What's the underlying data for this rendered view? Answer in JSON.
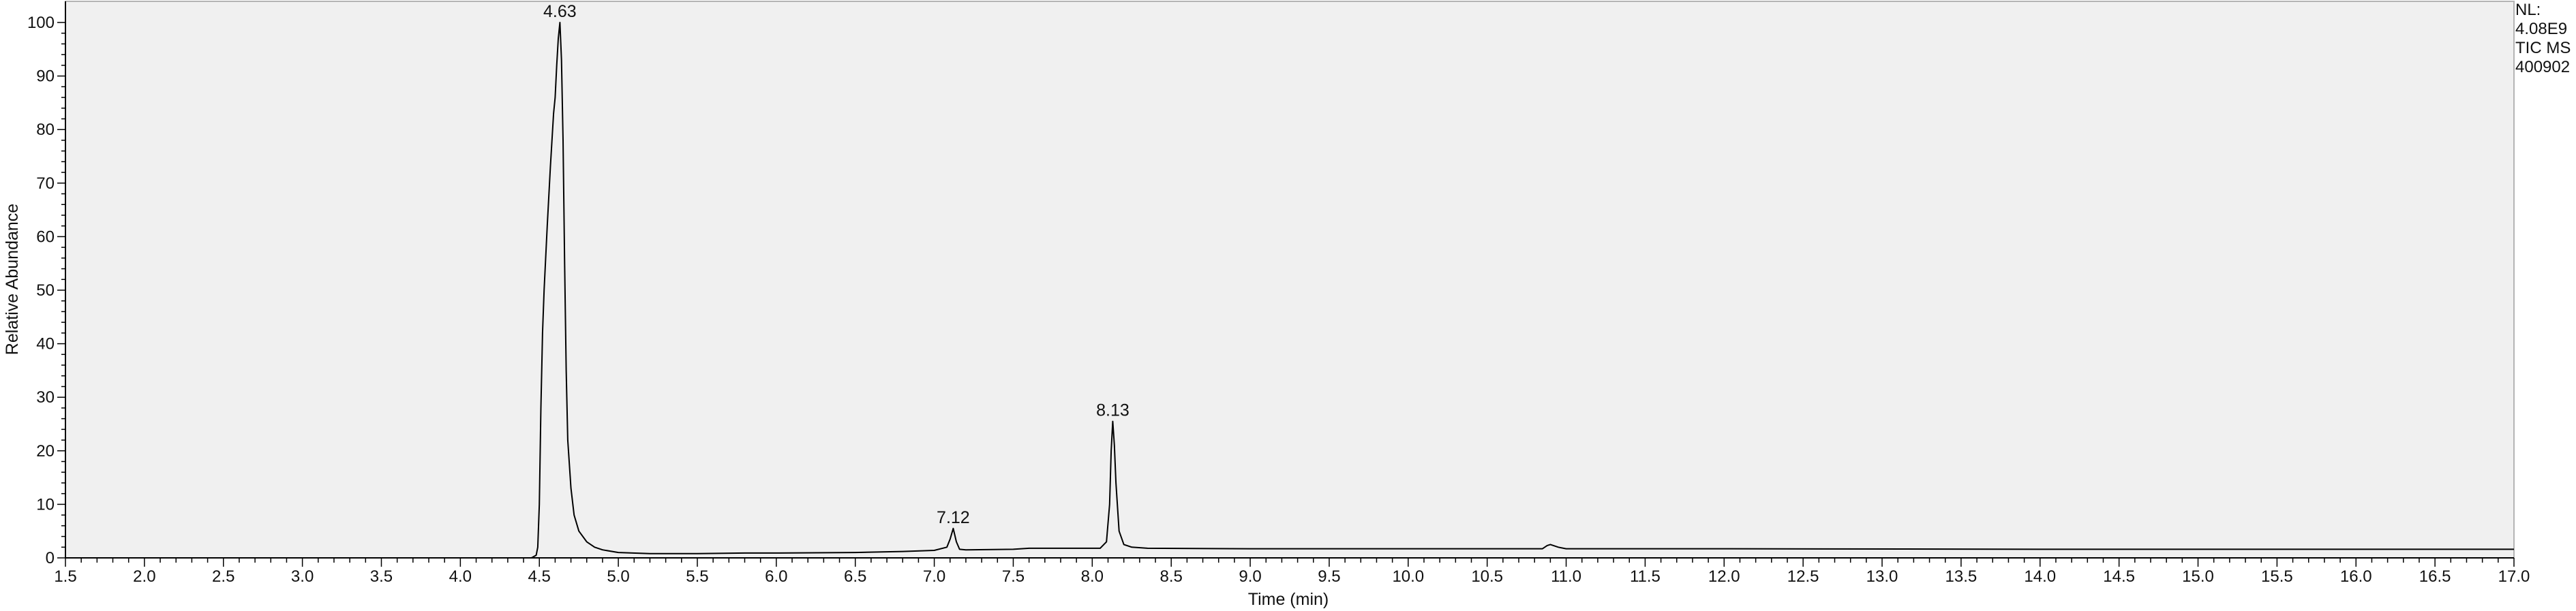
{
  "chart_data": {
    "type": "line",
    "xlabel": "Time (min)",
    "ylabel": "Relative Abundance",
    "xlim": [
      1.5,
      17.0
    ],
    "ylim": [
      0,
      100
    ],
    "grid": false,
    "legend": "none",
    "x_ticks": [
      "1.5",
      "2.0",
      "2.5",
      "3.0",
      "3.5",
      "4.0",
      "4.5",
      "5.0",
      "5.5",
      "6.0",
      "6.5",
      "7.0",
      "7.5",
      "8.0",
      "8.5",
      "9.0",
      "9.5",
      "10.0",
      "10.5",
      "11.0",
      "11.5",
      "12.0",
      "12.5",
      "13.0",
      "13.5",
      "14.0",
      "14.5",
      "15.0",
      "15.5",
      "16.0",
      "16.5",
      "17.0"
    ],
    "y_ticks": [
      "0",
      "10",
      "20",
      "30",
      "40",
      "50",
      "60",
      "70",
      "80",
      "90",
      "100"
    ],
    "peak_labels": [
      {
        "text": "4.63",
        "x": 4.63,
        "y": 100
      },
      {
        "text": "7.12",
        "x": 7.12,
        "y": 5.5
      },
      {
        "text": "8.13",
        "x": 8.13,
        "y": 25.5
      }
    ],
    "info_lines": [
      "NL:",
      "4.08E9",
      "TIC  MS",
      "400902"
    ],
    "series": [
      {
        "color": "#000000",
        "x": [
          1.5,
          4.45,
          4.48,
          4.49,
          4.5,
          4.51,
          4.52,
          4.53,
          4.55,
          4.57,
          4.59,
          4.6,
          4.61,
          4.62,
          4.63,
          4.64,
          4.65,
          4.66,
          4.67,
          4.68,
          4.7,
          4.72,
          4.75,
          4.8,
          4.85,
          4.9,
          5.0,
          5.2,
          5.5,
          5.8,
          6.0,
          6.5,
          6.8,
          7.0,
          7.08,
          7.1,
          7.12,
          7.14,
          7.16,
          7.2,
          7.5,
          7.6,
          8.05,
          8.09,
          8.11,
          8.12,
          8.13,
          8.14,
          8.15,
          8.17,
          8.2,
          8.25,
          8.35,
          9.0,
          10.0,
          10.85,
          10.88,
          10.9,
          10.95,
          11.0,
          12.0,
          14.0,
          17.0
        ],
        "y": [
          0,
          0,
          0.5,
          2,
          10,
          28,
          42,
          50,
          62,
          73,
          83,
          86,
          92,
          97,
          100,
          93,
          78,
          55,
          35,
          22,
          13,
          8,
          5,
          3,
          2,
          1.5,
          1,
          0.8,
          0.8,
          0.9,
          0.9,
          1,
          1.2,
          1.4,
          2,
          3.5,
          5.5,
          3,
          1.6,
          1.5,
          1.6,
          1.8,
          1.8,
          3,
          10,
          20,
          25.5,
          21,
          14,
          5,
          2.5,
          2,
          1.8,
          1.7,
          1.7,
          1.7,
          2.3,
          2.5,
          2,
          1.7,
          1.7,
          1.6,
          1.6
        ]
      }
    ]
  }
}
